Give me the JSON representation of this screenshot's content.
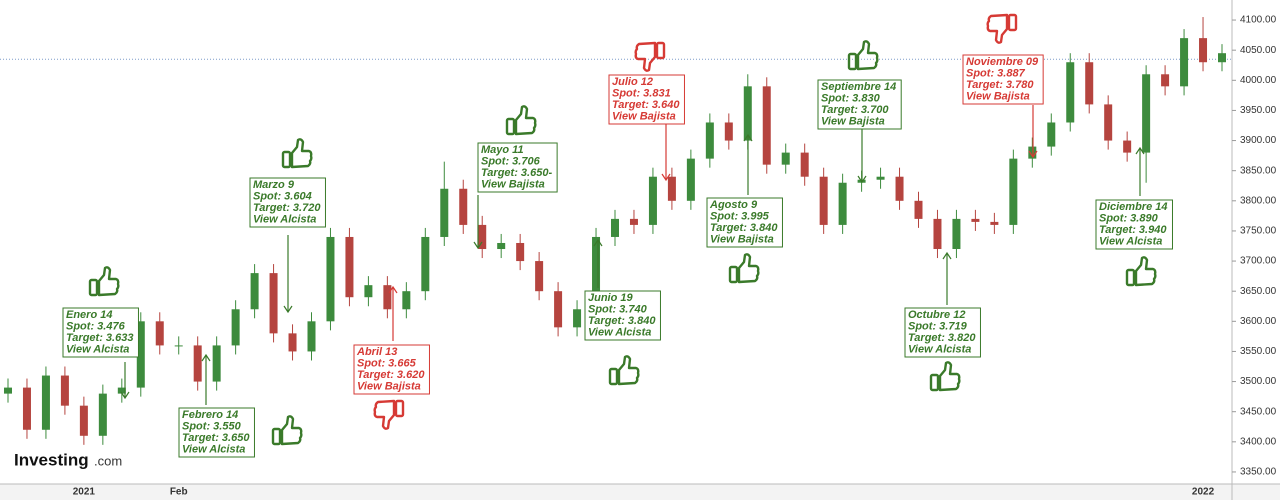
{
  "chart_data": {
    "type": "candlestick",
    "categories": [
      null,
      null,
      null,
      null,
      "2021",
      null,
      null,
      null,
      null,
      "Feb",
      null,
      null,
      null,
      null,
      null,
      null,
      null,
      null,
      null,
      null,
      null,
      null,
      null,
      null,
      null,
      null,
      null,
      null,
      null,
      null,
      null,
      null,
      null,
      null,
      null,
      null,
      null,
      null,
      null,
      null,
      null,
      null,
      null,
      null,
      null,
      null,
      null,
      null,
      null,
      null,
      null,
      null,
      null,
      null,
      null,
      null,
      null,
      null,
      null,
      null,
      null,
      null,
      null,
      "2022",
      null
    ],
    "open": [
      3480,
      3490,
      3420,
      3510,
      3460,
      3410,
      3480,
      3490,
      3600,
      3560,
      3560,
      3500,
      3560,
      3620,
      3680,
      3580,
      3550,
      3600,
      3740,
      3640,
      3660,
      3620,
      3650,
      3740,
      3820,
      3760,
      3720,
      3730,
      3700,
      3650,
      3590,
      3620,
      3740,
      3770,
      3760,
      3840,
      3800,
      3870,
      3930,
      3900,
      3990,
      3860,
      3880,
      3840,
      3760,
      3830,
      3835,
      3840,
      3800,
      3770,
      3720,
      3770,
      3765,
      3760,
      3870,
      3890,
      3930,
      4030,
      3960,
      3900,
      3880,
      4010,
      3990,
      4070,
      4030
    ],
    "high": [
      3505,
      3505,
      3525,
      3525,
      3475,
      3495,
      3505,
      3615,
      3615,
      3575,
      3575,
      3575,
      3635,
      3695,
      3695,
      3595,
      3615,
      3755,
      3755,
      3675,
      3675,
      3665,
      3755,
      3865,
      3835,
      3775,
      3745,
      3745,
      3715,
      3665,
      3635,
      3755,
      3785,
      3785,
      3855,
      3855,
      3885,
      3945,
      3945,
      4010,
      4005,
      3895,
      3895,
      3855,
      3845,
      3850,
      3855,
      3855,
      3815,
      3785,
      3785,
      3785,
      3780,
      3885,
      3905,
      3945,
      4045,
      4045,
      3975,
      3915,
      4025,
      4025,
      4085,
      4105,
      4060
    ],
    "low": [
      3465,
      3405,
      3405,
      3445,
      3395,
      3395,
      3465,
      3475,
      3545,
      3545,
      3485,
      3485,
      3545,
      3605,
      3565,
      3535,
      3535,
      3585,
      3625,
      3625,
      3605,
      3605,
      3635,
      3725,
      3745,
      3705,
      3705,
      3685,
      3635,
      3575,
      3575,
      3605,
      3725,
      3745,
      3745,
      3785,
      3785,
      3855,
      3885,
      3885,
      3845,
      3845,
      3825,
      3745,
      3745,
      3815,
      3820,
      3785,
      3755,
      3705,
      3705,
      3750,
      3745,
      3745,
      3855,
      3875,
      3915,
      3945,
      3885,
      3865,
      3830,
      3975,
      3975,
      4015,
      4015
    ],
    "close": [
      3490,
      3420,
      3510,
      3460,
      3410,
      3480,
      3490,
      3600,
      3560,
      3560,
      3500,
      3560,
      3620,
      3680,
      3580,
      3550,
      3600,
      3740,
      3640,
      3660,
      3620,
      3650,
      3740,
      3820,
      3760,
      3720,
      3730,
      3700,
      3650,
      3590,
      3620,
      3740,
      3770,
      3760,
      3840,
      3800,
      3870,
      3930,
      3900,
      3990,
      3860,
      3880,
      3840,
      3760,
      3830,
      3835,
      3840,
      3800,
      3770,
      3720,
      3770,
      3765,
      3760,
      3870,
      3890,
      3930,
      4030,
      3960,
      3900,
      3880,
      4010,
      3990,
      4070,
      4030,
      4045
    ],
    "up_color": "#3d8b3d",
    "down_color": "#b5443f",
    "ylim": [
      3330,
      4120
    ],
    "yticks": [
      {
        "value": 3350,
        "label": "3350.00"
      },
      {
        "value": 3400,
        "label": "3400.00"
      },
      {
        "value": 3450,
        "label": "3450.00"
      },
      {
        "value": 3500,
        "label": "3500.00"
      },
      {
        "value": 3550,
        "label": "3550.00"
      },
      {
        "value": 3600,
        "label": "3600.00"
      },
      {
        "value": 3650,
        "label": "3650.00"
      },
      {
        "value": 3700,
        "label": "3700.00"
      },
      {
        "value": 3750,
        "label": "3750.00"
      },
      {
        "value": 3800,
        "label": "3800.00"
      },
      {
        "value": 3850,
        "label": "3850.00"
      },
      {
        "value": 3900,
        "label": "3900.00"
      },
      {
        "value": 3950,
        "label": "3950.00"
      },
      {
        "value": 4000,
        "label": "4000.00"
      },
      {
        "value": 4050,
        "label": "4050.00"
      },
      {
        "value": 4100,
        "label": "4100.00"
      }
    ],
    "reference_line": 4035,
    "watermark": {
      "brand": "Investing",
      "suffix": ".com"
    },
    "annotations": [
      {
        "lines": [
          "Enero 14",
          "Spot: 3.476",
          "Target: 3.633",
          "View Alcista"
        ],
        "color": "#3a7a2a",
        "thumb": "up"
      },
      {
        "lines": [
          "Febrero 14",
          "Spot: 3.550",
          "Target: 3.650",
          "View Alcista"
        ],
        "color": "#3a7a2a",
        "thumb": "up"
      },
      {
        "lines": [
          "Marzo 9",
          "Spot: 3.604",
          "Target: 3.720",
          "View Alcista"
        ],
        "color": "#3a7a2a",
        "thumb": "up"
      },
      {
        "lines": [
          "Abril 13",
          "Spot: 3.665",
          "Target: 3.620",
          "View Bajista"
        ],
        "color": "#d63a35",
        "thumb": "down"
      },
      {
        "lines": [
          "Mayo 11",
          "Spot: 3.706",
          "Target: 3.650-",
          "View Bajista"
        ],
        "color": "#3a7a2a",
        "thumb": "up"
      },
      {
        "lines": [
          "Julio 12",
          "Spot: 3.831",
          "Target: 3.640",
          "View Bajista"
        ],
        "color": "#d63a35",
        "thumb": "down"
      },
      {
        "lines": [
          "Junio 19",
          "Spot: 3.740",
          "Target: 3.840",
          "View Alcista"
        ],
        "color": "#3a7a2a",
        "thumb": "up"
      },
      {
        "lines": [
          "Agosto 9",
          "Spot: 3.995",
          "Target: 3.840",
          "View Bajista"
        ],
        "color": "#3a7a2a",
        "thumb": "up"
      },
      {
        "lines": [
          "Septiembre 14",
          "Spot: 3.830",
          "Target: 3.700",
          "View Bajista"
        ],
        "color": "#3a7a2a",
        "thumb": "up"
      },
      {
        "lines": [
          "Octubre 12",
          "Spot: 3.719",
          "Target: 3.820",
          "View Alcista"
        ],
        "color": "#3a7a2a",
        "thumb": "up"
      },
      {
        "lines": [
          "Noviembre 09",
          "Spot: 3.887",
          "Target: 3.780",
          "View Bajista"
        ],
        "color": "#d63a35",
        "thumb": "down"
      },
      {
        "lines": [
          "Diciembre 14",
          "Spot: 3.890",
          "Target: 3.940",
          "View Alcista"
        ],
        "color": "#3a7a2a",
        "thumb": "up"
      }
    ]
  }
}
